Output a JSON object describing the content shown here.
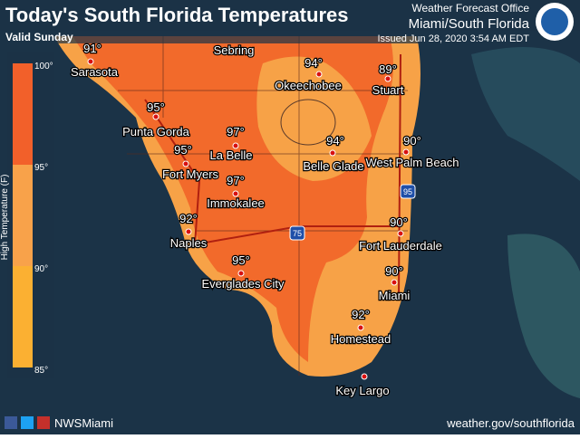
{
  "header": {
    "title": "Today's South Florida Temperatures",
    "subtitle": "Valid Sunday",
    "office": "Weather Forecast Office",
    "office_name": "Miami/South Florida",
    "issued": "Issued Jun 28, 2020 3:54 AM EDT"
  },
  "legend": {
    "title": "High Temperature (F)",
    "ticks": [
      "100°",
      "95°",
      "90°",
      "85°"
    ]
  },
  "cities": [
    {
      "name": "Sarasota",
      "temp": "91°"
    },
    {
      "name": "Sebring"
    },
    {
      "name": "Okeechobee",
      "temp": "94°"
    },
    {
      "name": "Stuart",
      "temp": "89°"
    },
    {
      "name": "Punta Gorda",
      "temp": "95°"
    },
    {
      "name": "La Belle",
      "temp": "97°"
    },
    {
      "name": "Belle Glade",
      "temp": "94°"
    },
    {
      "name": "West Palm Beach",
      "temp": "90°"
    },
    {
      "name": "Fort Myers",
      "temp": "95°"
    },
    {
      "name": "Immokalee",
      "temp": "97°"
    },
    {
      "name": "Naples",
      "temp": "92°"
    },
    {
      "name": "Fort Lauderdale",
      "temp": "90°"
    },
    {
      "name": "Everglades City",
      "temp": "95°"
    },
    {
      "name": "Miami",
      "temp": "90°"
    },
    {
      "name": "Homestead",
      "temp": "92°"
    },
    {
      "name": "Key Largo"
    }
  ],
  "highways": [
    "95",
    "75"
  ],
  "footer": {
    "social": "NWSMiami",
    "url": "weather.gov/southflorida"
  }
}
